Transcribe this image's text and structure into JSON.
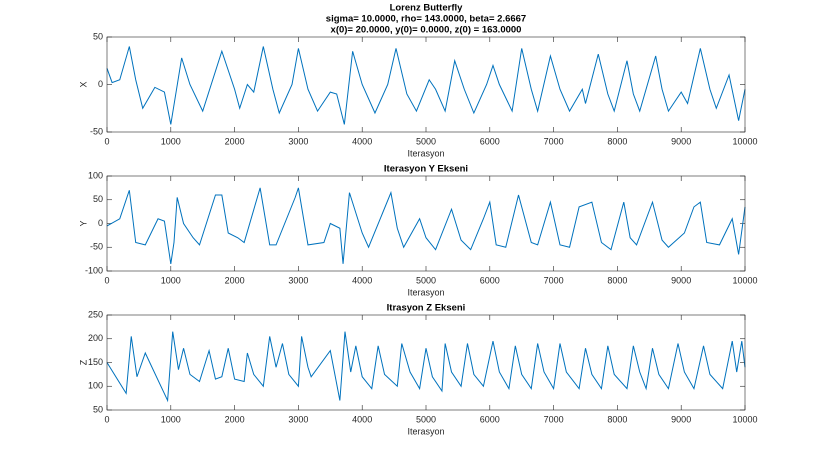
{
  "chart_data": [
    {
      "type": "line",
      "title": "Lorenz Butterfly",
      "subtitle": [
        "sigma= 10.0000, rho= 143.0000, beta= 2.6667",
        "x(0)= 20.0000, y(0)= 0.0000, z(0) = 163.0000"
      ],
      "x_label": "Iterasyon",
      "y_label": "X",
      "xlim": [
        0,
        10000
      ],
      "xticks": [
        0,
        1000,
        2000,
        3000,
        4000,
        5000,
        6000,
        7000,
        8000,
        9000,
        10000
      ],
      "ylim": [
        -50,
        50
      ],
      "yticks": [
        -50,
        0,
        50
      ],
      "x": [
        0,
        80,
        200,
        350,
        450,
        560,
        750,
        900,
        1000,
        1170,
        1300,
        1500,
        1800,
        2000,
        2080,
        2200,
        2300,
        2450,
        2600,
        2700,
        2900,
        3000,
        3150,
        3300,
        3500,
        3600,
        3720,
        3850,
        4000,
        4200,
        4400,
        4530,
        4700,
        4850,
        5050,
        5150,
        5300,
        5450,
        5600,
        5750,
        5950,
        6050,
        6150,
        6350,
        6500,
        6650,
        6750,
        6950,
        7100,
        7250,
        7450,
        7500,
        7700,
        7850,
        7950,
        8150,
        8250,
        8350,
        8600,
        8700,
        8800,
        9000,
        9100,
        9300,
        9450,
        9550,
        9750,
        9900,
        10000
      ],
      "series": [
        {
          "color": "#0072bd",
          "values": [
            17,
            2,
            5,
            40,
            5,
            -25,
            -3,
            -8,
            -42,
            28,
            0,
            -28,
            35,
            -5,
            -25,
            0,
            -8,
            40,
            -5,
            -30,
            0,
            38,
            -5,
            -28,
            -8,
            -10,
            -42,
            35,
            0,
            -30,
            0,
            38,
            -10,
            -28,
            5,
            -5,
            -28,
            25,
            -5,
            -30,
            0,
            20,
            0,
            -28,
            38,
            -5,
            -28,
            30,
            -5,
            -28,
            -5,
            -20,
            32,
            -10,
            -28,
            25,
            -10,
            -28,
            30,
            -5,
            -28,
            -8,
            -20,
            38,
            -5,
            -25,
            10,
            -38,
            -5
          ]
        }
      ]
    },
    {
      "type": "line",
      "title": "Iterasyon Y Ekseni",
      "x_label": "Iterasyon",
      "y_label": "Y",
      "xlim": [
        0,
        10000
      ],
      "xticks": [
        0,
        1000,
        2000,
        3000,
        4000,
        5000,
        6000,
        7000,
        8000,
        9000,
        10000
      ],
      "ylim": [
        -100,
        100
      ],
      "yticks": [
        -100,
        -50,
        0,
        50,
        100
      ],
      "x": [
        0,
        200,
        350,
        450,
        600,
        800,
        900,
        1000,
        1050,
        1100,
        1200,
        1350,
        1450,
        1700,
        1800,
        1900,
        2050,
        2150,
        2400,
        2550,
        2650,
        2950,
        3000,
        3150,
        3400,
        3500,
        3650,
        3700,
        3800,
        4000,
        4100,
        4450,
        4550,
        4650,
        4900,
        5000,
        5150,
        5400,
        5550,
        5700,
        5900,
        6000,
        6100,
        6250,
        6450,
        6650,
        6750,
        6950,
        7100,
        7250,
        7400,
        7600,
        7750,
        7900,
        8100,
        8200,
        8300,
        8550,
        8700,
        8800,
        9050,
        9200,
        9300,
        9400,
        9600,
        9800,
        9900,
        10000
      ],
      "series": [
        {
          "color": "#0072bd",
          "values": [
            -5,
            10,
            70,
            -40,
            -45,
            10,
            5,
            -85,
            -40,
            55,
            0,
            -30,
            -45,
            60,
            60,
            -20,
            -30,
            -40,
            75,
            -45,
            -45,
            55,
            75,
            -45,
            -40,
            0,
            -10,
            -85,
            65,
            -20,
            -50,
            65,
            -10,
            -50,
            10,
            -30,
            -55,
            30,
            -35,
            -55,
            10,
            45,
            -45,
            -50,
            60,
            -40,
            -45,
            45,
            -45,
            -50,
            35,
            45,
            -40,
            -55,
            45,
            -30,
            -45,
            45,
            -35,
            -50,
            -20,
            35,
            45,
            -40,
            -45,
            10,
            -65,
            35
          ]
        }
      ]
    },
    {
      "type": "line",
      "title": "Itrasyon Z Ekseni",
      "x_label": "Iterasyon",
      "y_label": "Z",
      "xlim": [
        0,
        10000
      ],
      "xticks": [
        0,
        1000,
        2000,
        3000,
        4000,
        5000,
        6000,
        7000,
        8000,
        9000,
        10000
      ],
      "ylim": [
        50,
        250
      ],
      "yticks": [
        50,
        100,
        150,
        200,
        250
      ],
      "x": [
        0,
        300,
        380,
        470,
        600,
        950,
        1030,
        1120,
        1200,
        1300,
        1450,
        1600,
        1700,
        1800,
        1900,
        2000,
        2150,
        2200,
        2300,
        2450,
        2550,
        2650,
        2750,
        2850,
        3000,
        3050,
        3150,
        3200,
        3500,
        3650,
        3730,
        3820,
        3900,
        4000,
        4150,
        4250,
        4350,
        4550,
        4620,
        4750,
        4900,
        5000,
        5100,
        5250,
        5300,
        5400,
        5550,
        5650,
        5750,
        5900,
        6050,
        6150,
        6300,
        6400,
        6500,
        6650,
        6750,
        6850,
        7000,
        7100,
        7200,
        7400,
        7500,
        7600,
        7750,
        7850,
        7950,
        8150,
        8250,
        8350,
        8450,
        8550,
        8650,
        8800,
        8950,
        9050,
        9200,
        9350,
        9450,
        9650,
        9800,
        9870,
        9950,
        10000
      ],
      "series": [
        {
          "color": "#0072bd",
          "values": [
            150,
            85,
            205,
            120,
            170,
            70,
            215,
            135,
            180,
            125,
            110,
            175,
            115,
            120,
            180,
            115,
            110,
            170,
            125,
            100,
            205,
            140,
            190,
            125,
            100,
            205,
            140,
            120,
            175,
            70,
            215,
            130,
            185,
            120,
            95,
            185,
            125,
            100,
            190,
            130,
            95,
            180,
            120,
            90,
            190,
            130,
            100,
            190,
            125,
            100,
            195,
            130,
            95,
            185,
            125,
            95,
            190,
            130,
            95,
            190,
            130,
            95,
            180,
            125,
            95,
            185,
            125,
            95,
            185,
            130,
            95,
            180,
            125,
            95,
            190,
            130,
            95,
            185,
            125,
            95,
            195,
            130,
            195,
            140
          ]
        }
      ]
    }
  ]
}
